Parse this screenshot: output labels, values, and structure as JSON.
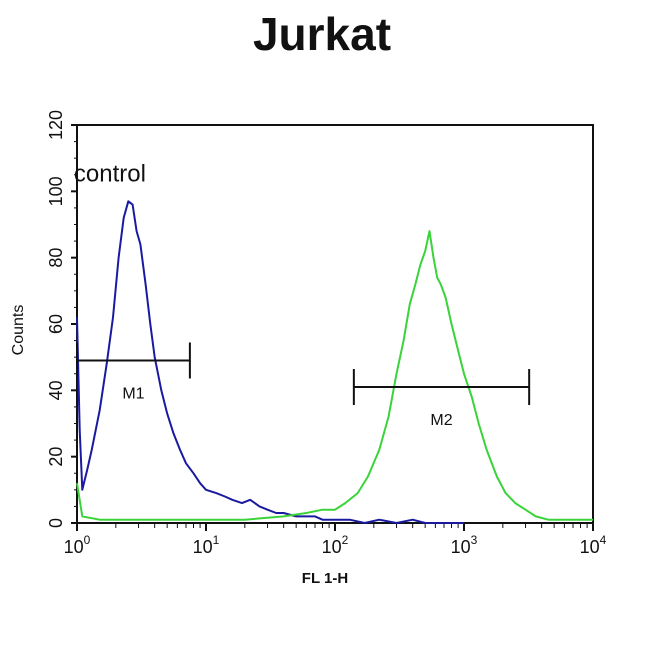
{
  "title": "Jurkat",
  "chart_data": {
    "type": "line",
    "title": "Jurkat",
    "xlabel": "FL 1-H",
    "ylabel": "Counts",
    "xscale": "log",
    "xlim": [
      1,
      10000
    ],
    "ylim": [
      0,
      120
    ],
    "grid": false,
    "x_ticks": [
      {
        "base": "10",
        "exp": "0",
        "value": 1
      },
      {
        "base": "10",
        "exp": "1",
        "value": 10
      },
      {
        "base": "10",
        "exp": "2",
        "value": 100
      },
      {
        "base": "10",
        "exp": "3",
        "value": 1000
      },
      {
        "base": "10",
        "exp": "4",
        "value": 10000
      }
    ],
    "y_ticks": [
      "0",
      "20",
      "40",
      "60",
      "80",
      "100",
      "120"
    ],
    "annotations": [
      {
        "text": "control",
        "x": 1.8,
        "y": 103
      }
    ],
    "markers": [
      {
        "label": "M1",
        "x_start": 1,
        "x_end": 7.5,
        "y": 49
      },
      {
        "label": "M2",
        "x_start": 140,
        "x_end": 3200,
        "y": 41
      }
    ],
    "series": [
      {
        "name": "control",
        "color": "#1a1aa0",
        "x": [
          1,
          1.05,
          1.1,
          1.2,
          1.3,
          1.5,
          1.7,
          1.9,
          2.1,
          2.3,
          2.5,
          2.7,
          2.9,
          3.1,
          3.4,
          3.7,
          4.0,
          4.5,
          5.0,
          5.6,
          6.3,
          7,
          8,
          9,
          10,
          12,
          14,
          16,
          19,
          22,
          26,
          30,
          35,
          40,
          50,
          60,
          70,
          80,
          100,
          130,
          170,
          220,
          300,
          400,
          500,
          700,
          1000
        ],
        "y": [
          62,
          28,
          10,
          16,
          22,
          34,
          48,
          62,
          80,
          92,
          97,
          96,
          88,
          84,
          72,
          60,
          50,
          40,
          33,
          27,
          22,
          18,
          15,
          12,
          10,
          9,
          8,
          7,
          6,
          7,
          5,
          4,
          3,
          3,
          2,
          2,
          2,
          1,
          1,
          1,
          0,
          1,
          0,
          1,
          0,
          0,
          0
        ]
      },
      {
        "name": "M2",
        "color": "#3ad33a",
        "x": [
          1,
          1.1,
          1.5,
          2,
          3,
          5,
          10,
          20,
          40,
          60,
          80,
          100,
          120,
          150,
          180,
          220,
          260,
          300,
          340,
          380,
          420,
          460,
          500,
          540,
          580,
          620,
          660,
          720,
          800,
          900,
          1000,
          1150,
          1300,
          1500,
          1800,
          2100,
          2500,
          3000,
          3600,
          4500,
          6000,
          8000,
          10000
        ],
        "y": [
          12,
          2,
          1,
          1,
          1,
          1,
          1,
          1,
          2,
          3,
          4,
          4,
          6,
          9,
          14,
          22,
          32,
          45,
          55,
          66,
          72,
          78,
          82,
          88,
          80,
          74,
          72,
          68,
          60,
          52,
          45,
          38,
          30,
          22,
          14,
          9,
          6,
          4,
          2,
          1,
          1,
          1,
          1
        ]
      }
    ]
  }
}
